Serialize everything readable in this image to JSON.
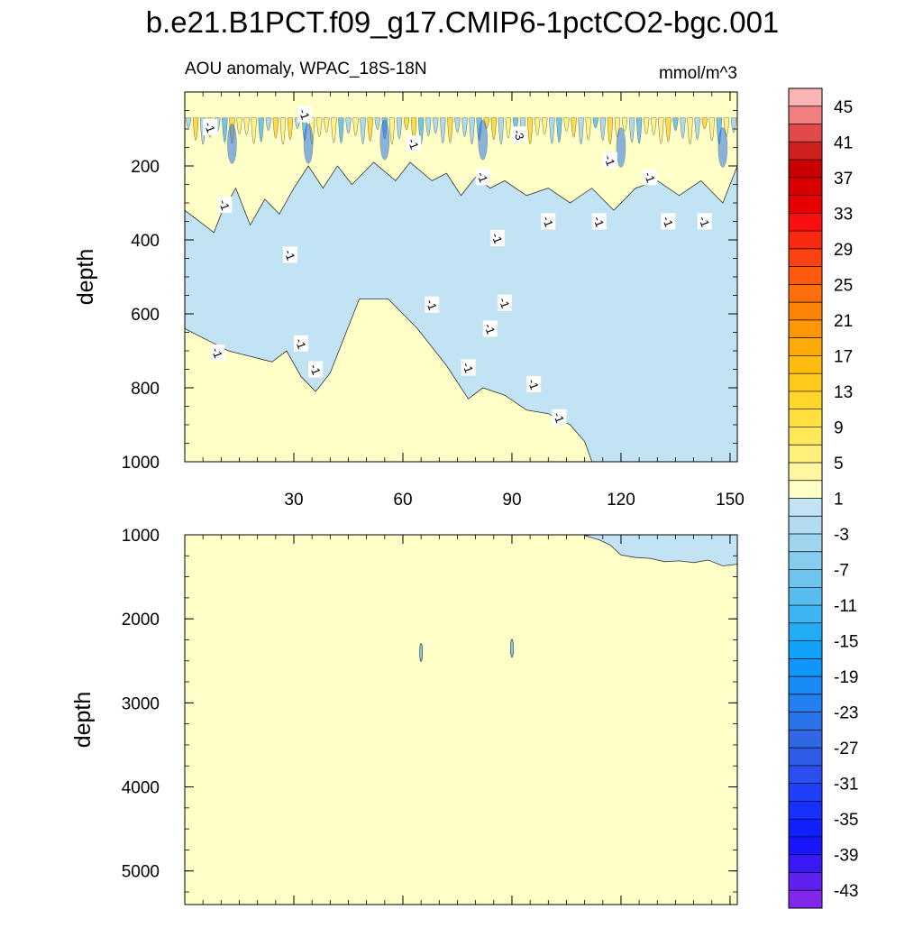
{
  "chart_data": {
    "type": "heatmap",
    "title": "b.e21.B1PCT.f09_g17.CMIP6-1pctCO2-bgc.001",
    "left_subtitle": "AOU anomaly, WPAC_18S-18N",
    "right_subtitle": "mmol/m^3",
    "xlim": [
      0,
      152
    ],
    "x_ticks": [
      "30",
      "60",
      "90",
      "120",
      "150"
    ],
    "panels": [
      {
        "id": "upper",
        "ylabel": "depth",
        "ylim": [
          1000,
          0
        ],
        "y_ticks": [
          "200",
          "400",
          "600",
          "800",
          "1000"
        ],
        "background_level": "1",
        "negative_region_outline": [
          [
            0,
            320
          ],
          [
            8,
            380
          ],
          [
            10,
            330
          ],
          [
            14,
            260
          ],
          [
            18,
            360
          ],
          [
            22,
            290
          ],
          [
            26,
            330
          ],
          [
            30,
            260
          ],
          [
            34,
            200
          ],
          [
            38,
            260
          ],
          [
            42,
            200
          ],
          [
            46,
            250
          ],
          [
            52,
            190
          ],
          [
            58,
            240
          ],
          [
            62,
            190
          ],
          [
            68,
            240
          ],
          [
            72,
            220
          ],
          [
            76,
            280
          ],
          [
            80,
            230
          ],
          [
            84,
            260
          ],
          [
            88,
            240
          ],
          [
            94,
            280
          ],
          [
            100,
            260
          ],
          [
            106,
            300
          ],
          [
            112,
            260
          ],
          [
            118,
            320
          ],
          [
            124,
            260
          ],
          [
            130,
            240
          ],
          [
            136,
            280
          ],
          [
            142,
            240
          ],
          [
            148,
            300
          ],
          [
            152,
            200
          ],
          [
            152,
            1000
          ],
          [
            112,
            1000
          ],
          [
            110,
            945
          ],
          [
            106,
            900
          ],
          [
            100,
            870
          ],
          [
            94,
            860
          ],
          [
            88,
            820
          ],
          [
            82,
            800
          ],
          [
            78,
            830
          ],
          [
            72,
            740
          ],
          [
            64,
            640
          ],
          [
            56,
            560
          ],
          [
            48,
            560
          ],
          [
            40,
            760
          ],
          [
            36,
            810
          ],
          [
            32,
            770
          ],
          [
            28,
            700
          ],
          [
            24,
            730
          ],
          [
            20,
            720
          ],
          [
            16,
            710
          ],
          [
            12,
            700
          ],
          [
            8,
            680
          ],
          [
            4,
            660
          ],
          [
            0,
            640
          ]
        ],
        "contour_labels": [
          {
            "text": "-1",
            "x": 7,
            "depth": 95
          },
          {
            "text": "-1",
            "x": 33,
            "depth": 60
          },
          {
            "text": "-1",
            "x": 63,
            "depth": 140
          },
          {
            "text": "-3",
            "x": 92,
            "depth": 115
          },
          {
            "text": "-1",
            "x": 11,
            "depth": 305
          },
          {
            "text": "-1",
            "x": 29,
            "depth": 440
          },
          {
            "text": "-1",
            "x": 82,
            "depth": 230
          },
          {
            "text": "-1",
            "x": 86,
            "depth": 395
          },
          {
            "text": "-1",
            "x": 117,
            "depth": 185
          },
          {
            "text": "-1",
            "x": 128,
            "depth": 230
          },
          {
            "text": "-1",
            "x": 100,
            "depth": 350
          },
          {
            "text": "-1",
            "x": 114,
            "depth": 350
          },
          {
            "text": "-1",
            "x": 133,
            "depth": 350
          },
          {
            "text": "-1",
            "x": 143,
            "depth": 350
          },
          {
            "text": "-1",
            "x": 68,
            "depth": 575
          },
          {
            "text": "-1",
            "x": 88,
            "depth": 570
          },
          {
            "text": "-1",
            "x": 84,
            "depth": 640
          },
          {
            "text": "-1",
            "x": 32,
            "depth": 680
          },
          {
            "text": "-1",
            "x": 9,
            "depth": 705
          },
          {
            "text": "-1",
            "x": 36,
            "depth": 750
          },
          {
            "text": "-1",
            "x": 78,
            "depth": 745
          },
          {
            "text": "-1",
            "x": 96,
            "depth": 790
          },
          {
            "text": "-1",
            "x": 103,
            "depth": 880
          }
        ]
      },
      {
        "id": "lower",
        "ylabel": "depth",
        "ylim": [
          5400,
          1000
        ],
        "y_ticks": [
          "1000",
          "2000",
          "3000",
          "4000",
          "5000"
        ],
        "background_level": "1",
        "negative_region_outline": [
          [
            112,
            1000
          ],
          [
            152,
            1000
          ],
          [
            152,
            1350
          ],
          [
            148,
            1370
          ],
          [
            144,
            1300
          ],
          [
            140,
            1330
          ],
          [
            136,
            1310
          ],
          [
            132,
            1320
          ],
          [
            128,
            1280
          ],
          [
            124,
            1270
          ],
          [
            120,
            1240
          ],
          [
            117,
            1120
          ],
          [
            114,
            1060
          ],
          [
            110,
            1010
          ]
        ],
        "small_features": [
          {
            "x": 65,
            "depth": 2400
          },
          {
            "x": 90,
            "depth": 2350
          }
        ]
      }
    ],
    "colorbar": {
      "tick_labels": [
        "45",
        "41",
        "37",
        "33",
        "29",
        "25",
        "21",
        "17",
        "13",
        "9",
        "5",
        "1",
        "-3",
        "-7",
        "-11",
        "-15",
        "-19",
        "-23",
        "-27",
        "-31",
        "-35",
        "-39",
        "-43"
      ],
      "colors": [
        "#fbb4b4",
        "#f28080",
        "#e24a4a",
        "#cf2020",
        "#c80000",
        "#d80000",
        "#e60000",
        "#f81010",
        "#fa2a10",
        "#fc4212",
        "#fd5a0e",
        "#fd6f0a",
        "#fd8308",
        "#fe9606",
        "#feaa08",
        "#ffbb10",
        "#ffca1c",
        "#ffd62c",
        "#ffe040",
        "#ffe95a",
        "#fff07c",
        "#fff6a4",
        "#ffffc8",
        "#c2e3f4",
        "#b0dbf0",
        "#9ed4ee",
        "#86ccec",
        "#6ec4ec",
        "#58bcee",
        "#3eb4f0",
        "#22acf2",
        "#10a2f6",
        "#1096f8",
        "#1a8af6",
        "#2480f0",
        "#2a74ea",
        "#3068e4",
        "#2e5ce6",
        "#2a4ef0",
        "#2040f8",
        "#1830fc",
        "#1020fe",
        "#1a16fc",
        "#3a1af4",
        "#6020f0",
        "#8228ec"
      ]
    }
  }
}
